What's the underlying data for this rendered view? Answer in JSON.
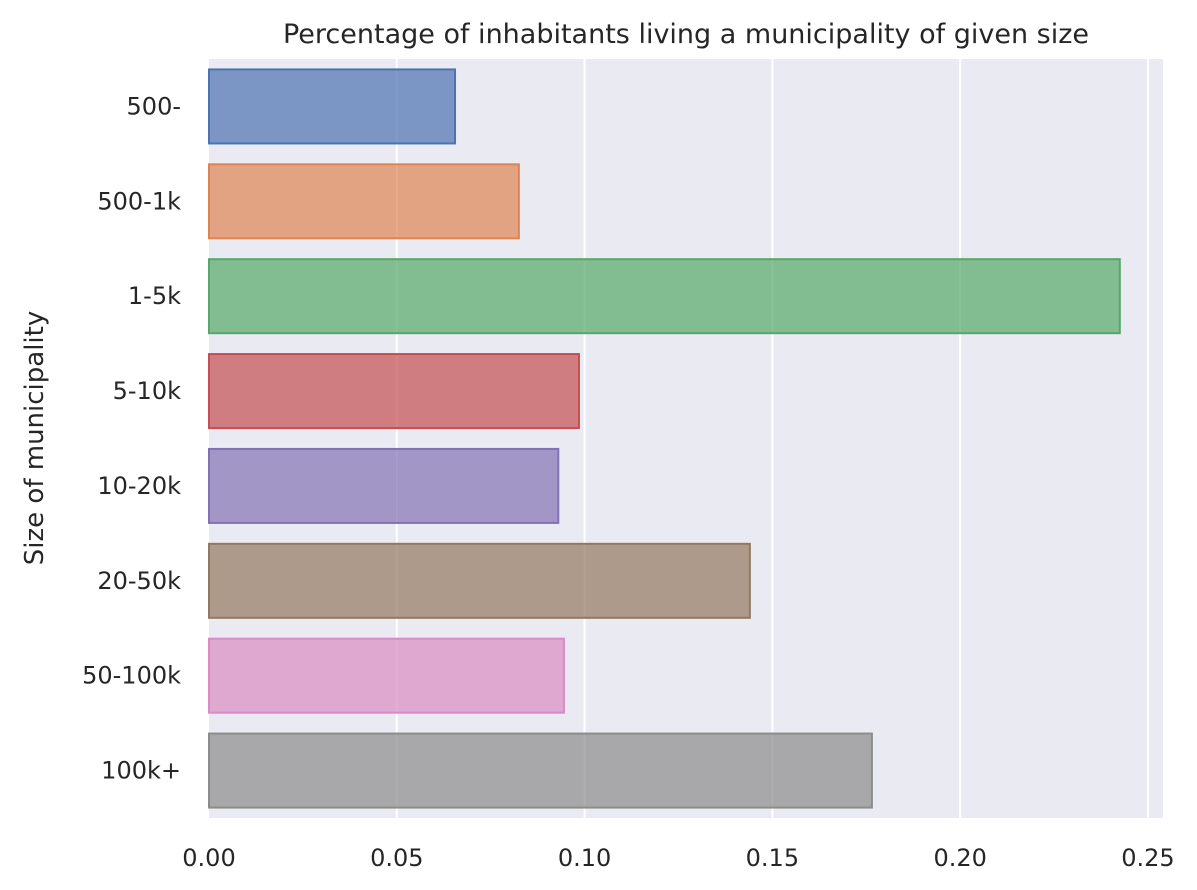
{
  "chart_data": {
    "type": "bar",
    "orientation": "horizontal",
    "title": "Percentage of inhabitants living a municipality of given size",
    "xlabel": "",
    "ylabel": "Size of municipality",
    "xlim": [
      0,
      0.254
    ],
    "grid": true,
    "legend": "none",
    "background_color": "#eaeaf2",
    "grid_color": "#ffffff",
    "x_ticks": [
      "0.00",
      "0.05",
      "0.10",
      "0.15",
      "0.20",
      "0.25"
    ],
    "x_tick_values": [
      0,
      0.05,
      0.1,
      0.15,
      0.2,
      0.25
    ],
    "categories": [
      "500-",
      "500-1k",
      "1-5k",
      "5-10k",
      "10-20k",
      "20-50k",
      "50-100k",
      "100k+"
    ],
    "values": [
      0.0655,
      0.0825,
      0.2425,
      0.0985,
      0.093,
      0.144,
      0.0945,
      0.1765
    ],
    "colors": [
      "#4c72b0",
      "#dd8452",
      "#55a868",
      "#c44e52",
      "#8172b3",
      "#937860",
      "#da8bc3",
      "#8c8c8c"
    ]
  }
}
